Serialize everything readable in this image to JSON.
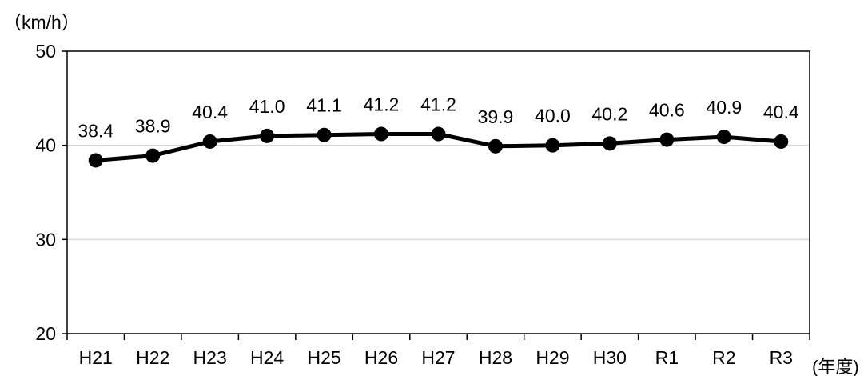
{
  "chart_data": {
    "type": "line",
    "y_unit_label": "（km/h）",
    "x_unit_label": "(年度)",
    "categories": [
      "H21",
      "H22",
      "H23",
      "H24",
      "H25",
      "H26",
      "H27",
      "H28",
      "H29",
      "H30",
      "R1",
      "R2",
      "R3"
    ],
    "series": [
      {
        "values": [
          38.4,
          38.9,
          40.4,
          41.0,
          41.1,
          41.2,
          41.2,
          39.9,
          40.0,
          40.2,
          40.6,
          40.9,
          40.4
        ]
      }
    ],
    "data_labels": [
      "38.4",
      "38.9",
      "40.4",
      "41.0",
      "41.1",
      "41.2",
      "41.2",
      "39.9",
      "40.0",
      "40.2",
      "40.6",
      "40.9",
      "40.4"
    ],
    "ylim": [
      20,
      50
    ],
    "yticks": [
      20,
      30,
      40,
      50
    ],
    "grid": true,
    "line_color": "#000000",
    "grid_color": "#d9d9d9"
  }
}
